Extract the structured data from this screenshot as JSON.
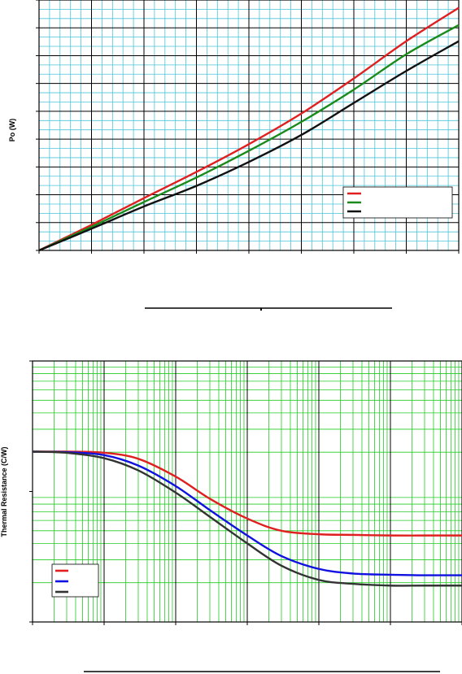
{
  "chart_data": [
    {
      "type": "line",
      "title": "",
      "xlabel": "",
      "ylabel": "Po (W)",
      "xlim": [
        0,
        8
      ],
      "ylim": [
        0,
        9
      ],
      "xticks": [
        0,
        1,
        2,
        3,
        4,
        5,
        6,
        7,
        8
      ],
      "yticks": [
        0,
        1,
        2,
        3,
        4,
        5,
        6,
        7,
        8,
        9
      ],
      "grid": true,
      "minor_grid": true,
      "legend": "bottom-right",
      "x": [
        0,
        1,
        2,
        3,
        4,
        5,
        6,
        7,
        8
      ],
      "series": [
        {
          "color": "#e02020",
          "values": [
            0,
            0.92,
            1.88,
            2.82,
            3.82,
            4.92,
            6.18,
            7.52,
            8.72
          ]
        },
        {
          "color": "#1a8a1a",
          "values": [
            0,
            0.85,
            1.74,
            2.62,
            3.58,
            4.62,
            5.78,
            7.05,
            8.1
          ]
        },
        {
          "color": "#111111",
          "values": [
            0,
            0.78,
            1.58,
            2.32,
            3.18,
            4.15,
            5.3,
            6.45,
            7.52
          ]
        }
      ]
    },
    {
      "type": "line",
      "title": "",
      "xlabel": "",
      "ylabel": "Thermal Resistance (C/W)",
      "xscale": "log",
      "yscale": "log",
      "xlim": [
        0.0001,
        100
      ],
      "ylim": [
        0.1,
        10
      ],
      "grid": true,
      "legend": "bottom-left",
      "x": [
        0.0001,
        0.0003,
        0.001,
        0.003,
        0.01,
        0.03,
        0.1,
        0.3,
        1,
        3,
        10,
        30,
        100
      ],
      "series": [
        {
          "color": "#e02020",
          "values": [
            2.02,
            2.02,
            1.98,
            1.78,
            1.3,
            0.88,
            0.62,
            0.5,
            0.47,
            0.465,
            0.46,
            0.46,
            0.46
          ]
        },
        {
          "color": "#1010e0",
          "values": [
            2.02,
            2.0,
            1.9,
            1.58,
            1.1,
            0.72,
            0.46,
            0.32,
            0.255,
            0.235,
            0.23,
            0.228,
            0.228
          ]
        },
        {
          "color": "#333333",
          "values": [
            2.02,
            1.98,
            1.8,
            1.45,
            0.98,
            0.64,
            0.4,
            0.27,
            0.21,
            0.196,
            0.19,
            0.19,
            0.19
          ]
        }
      ]
    }
  ]
}
